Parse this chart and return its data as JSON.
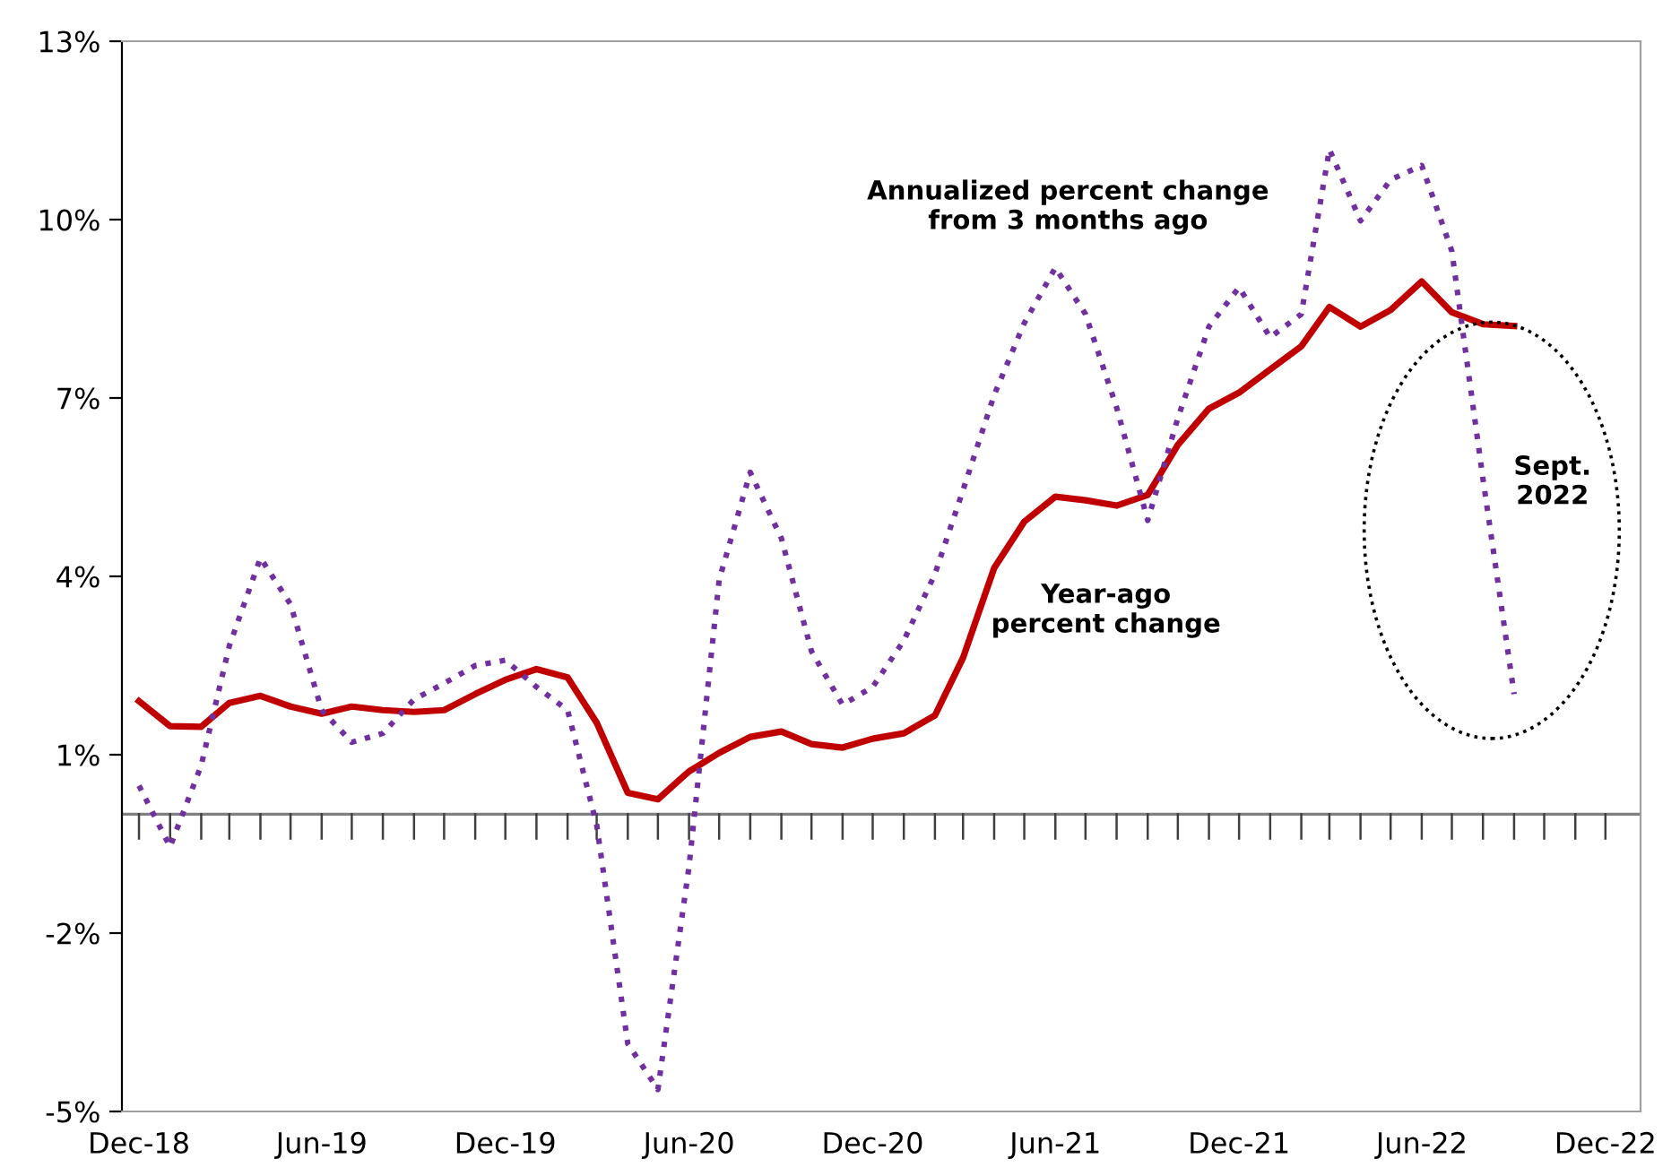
{
  "chart_data": {
    "type": "line",
    "x": [
      "2018-12",
      "2019-01",
      "2019-02",
      "2019-03",
      "2019-04",
      "2019-05",
      "2019-06",
      "2019-07",
      "2019-08",
      "2019-09",
      "2019-10",
      "2019-11",
      "2019-12",
      "2020-01",
      "2020-02",
      "2020-03",
      "2020-04",
      "2020-05",
      "2020-06",
      "2020-07",
      "2020-08",
      "2020-09",
      "2020-10",
      "2020-11",
      "2020-12",
      "2021-01",
      "2021-02",
      "2021-03",
      "2021-04",
      "2021-05",
      "2021-06",
      "2021-07",
      "2021-08",
      "2021-09",
      "2021-10",
      "2021-11",
      "2021-12",
      "2022-01",
      "2022-02",
      "2022-03",
      "2022-04",
      "2022-05",
      "2022-06",
      "2022-07",
      "2022-08",
      "2022-09"
    ],
    "series": [
      {
        "name": "Year-ago\npercent change",
        "color": "#c00000",
        "line_style": "solid",
        "values": [
          1.9,
          1.48,
          1.47,
          1.87,
          1.99,
          1.81,
          1.69,
          1.81,
          1.75,
          1.72,
          1.75,
          2.02,
          2.26,
          2.44,
          2.3,
          1.54,
          0.36,
          0.25,
          0.72,
          1.03,
          1.3,
          1.39,
          1.18,
          1.12,
          1.27,
          1.36,
          1.66,
          2.63,
          4.14,
          4.92,
          5.34,
          5.28,
          5.19,
          5.37,
          6.21,
          6.82,
          7.09,
          7.48,
          7.87,
          8.53,
          8.2,
          8.48,
          8.96,
          8.44,
          8.24,
          8.21
        ]
      },
      {
        "name": "Annualized percent change\nfrom 3 months ago",
        "color": "#7030a0",
        "line_style": "dotted",
        "values": [
          0.48,
          -0.55,
          0.82,
          2.83,
          4.31,
          3.53,
          1.75,
          1.21,
          1.36,
          1.93,
          2.2,
          2.5,
          2.59,
          2.14,
          1.75,
          -0.18,
          -3.86,
          -4.63,
          -0.88,
          3.94,
          5.75,
          4.64,
          2.74,
          1.84,
          2.14,
          2.92,
          4.04,
          5.45,
          7.05,
          8.26,
          9.19,
          8.41,
          6.84,
          4.94,
          6.66,
          8.2,
          8.86,
          8.02,
          8.41,
          11.18,
          9.98,
          10.67,
          10.91,
          9.47,
          5.64,
          2.02
        ]
      }
    ],
    "xlim": [
      "2018-11-14",
      "2023-01-05"
    ],
    "xticks": [
      {
        "value": "2018-12",
        "label": "Dec-18"
      },
      {
        "value": "2019-01",
        "label": null
      },
      {
        "value": "2019-02",
        "label": null
      },
      {
        "value": "2019-03",
        "label": null
      },
      {
        "value": "2019-04",
        "label": null
      },
      {
        "value": "2019-05",
        "label": null
      },
      {
        "value": "2019-06",
        "label": "Jun-19"
      },
      {
        "value": "2019-07",
        "label": null
      },
      {
        "value": "2019-08",
        "label": null
      },
      {
        "value": "2019-09",
        "label": null
      },
      {
        "value": "2019-10",
        "label": null
      },
      {
        "value": "2019-11",
        "label": null
      },
      {
        "value": "2019-12",
        "label": "Dec-19"
      },
      {
        "value": "2020-01",
        "label": null
      },
      {
        "value": "2020-02",
        "label": null
      },
      {
        "value": "2020-03",
        "label": null
      },
      {
        "value": "2020-04",
        "label": null
      },
      {
        "value": "2020-05",
        "label": null
      },
      {
        "value": "2020-06",
        "label": "Jun-20"
      },
      {
        "value": "2020-07",
        "label": null
      },
      {
        "value": "2020-08",
        "label": null
      },
      {
        "value": "2020-09",
        "label": null
      },
      {
        "value": "2020-10",
        "label": null
      },
      {
        "value": "2020-11",
        "label": null
      },
      {
        "value": "2020-12",
        "label": "Dec-20"
      },
      {
        "value": "2021-01",
        "label": null
      },
      {
        "value": "2021-02",
        "label": null
      },
      {
        "value": "2021-03",
        "label": null
      },
      {
        "value": "2021-04",
        "label": null
      },
      {
        "value": "2021-05",
        "label": null
      },
      {
        "value": "2021-06",
        "label": "Jun-21"
      },
      {
        "value": "2021-07",
        "label": null
      },
      {
        "value": "2021-08",
        "label": null
      },
      {
        "value": "2021-09",
        "label": null
      },
      {
        "value": "2021-10",
        "label": null
      },
      {
        "value": "2021-11",
        "label": null
      },
      {
        "value": "2021-12",
        "label": "Dec-21"
      },
      {
        "value": "2022-01",
        "label": null
      },
      {
        "value": "2022-02",
        "label": null
      },
      {
        "value": "2022-03",
        "label": null
      },
      {
        "value": "2022-04",
        "label": null
      },
      {
        "value": "2022-05",
        "label": null
      },
      {
        "value": "2022-06",
        "label": "Jun-22"
      },
      {
        "value": "2022-07",
        "label": null
      },
      {
        "value": "2022-08",
        "label": null
      },
      {
        "value": "2022-09",
        "label": null
      },
      {
        "value": "2022-10",
        "label": null
      },
      {
        "value": "2022-11",
        "label": null
      },
      {
        "value": "2022-12",
        "label": "Dec-22"
      }
    ],
    "ylim": [
      -5,
      13
    ],
    "yticks": [
      {
        "value": -5,
        "label": "-5%"
      },
      {
        "value": -2,
        "label": "-2%"
      },
      {
        "value": 1,
        "label": "1%"
      },
      {
        "value": 4,
        "label": "4%"
      },
      {
        "value": 7,
        "label": "7%"
      },
      {
        "value": 10,
        "label": "10%"
      },
      {
        "value": 13,
        "label": "13%"
      }
    ],
    "ref_lines": [
      {
        "axis": "y",
        "value": 0,
        "label": null,
        "color": "#808080"
      }
    ],
    "annotations": [
      "Sept.\n2022"
    ],
    "grid": false,
    "legend": false,
    "marker": "none"
  }
}
